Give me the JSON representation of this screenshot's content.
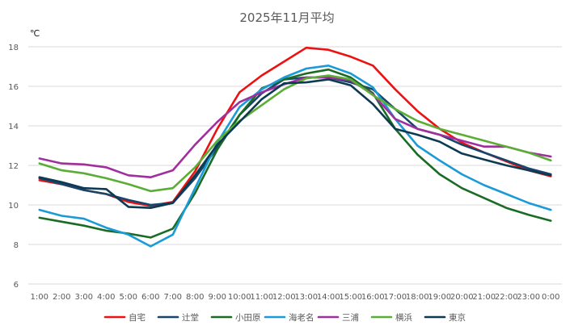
{
  "chart_data": {
    "type": "line",
    "title": "2025年11月平均",
    "ylabel": "℃",
    "xlabel": "",
    "ylim": [
      6,
      18
    ],
    "yticks": [
      6,
      8,
      10,
      12,
      14,
      16,
      18
    ],
    "grid": true,
    "legend_position": "bottom",
    "categories": [
      "1:00",
      "2:00",
      "3:00",
      "4:00",
      "5:00",
      "6:00",
      "7:00",
      "8:00",
      "9:00",
      "10:00",
      "11:00",
      "12:00",
      "13:00",
      "14:00",
      "15:00",
      "16:00",
      "17:00",
      "18:00",
      "19:00",
      "20:00",
      "21:00",
      "22:00",
      "23:00",
      "0:00"
    ],
    "series": [
      {
        "name": "自宅",
        "color": "#ee1111",
        "values": [
          11.25,
          11.05,
          10.75,
          10.55,
          10.15,
          9.95,
          10.15,
          11.7,
          13.85,
          15.7,
          16.55,
          17.25,
          17.95,
          17.85,
          17.5,
          17.05,
          15.85,
          14.75,
          13.85,
          13.15,
          12.65,
          12.2,
          11.75,
          11.45
        ]
      },
      {
        "name": "辻堂",
        "color": "#17456b",
        "values": [
          11.35,
          11.05,
          10.75,
          10.55,
          10.25,
          10.0,
          10.1,
          11.35,
          12.9,
          14.55,
          15.65,
          16.35,
          16.45,
          16.45,
          16.2,
          15.85,
          14.85,
          13.85,
          13.55,
          13.05,
          12.65,
          12.25,
          11.85,
          11.55
        ]
      },
      {
        "name": "小田原",
        "color": "#1a6b23",
        "values": [
          9.35,
          9.15,
          8.95,
          8.7,
          8.55,
          8.35,
          8.8,
          10.6,
          12.8,
          14.55,
          15.9,
          16.35,
          16.65,
          16.85,
          16.45,
          15.65,
          13.85,
          12.55,
          11.55,
          10.85,
          10.35,
          9.85,
          9.5,
          9.2
        ]
      },
      {
        "name": "海老名",
        "color": "#1a9bd7",
        "values": [
          9.75,
          9.45,
          9.3,
          8.85,
          8.5,
          7.9,
          8.5,
          10.85,
          13.15,
          14.95,
          15.85,
          16.45,
          16.9,
          17.05,
          16.65,
          15.95,
          14.35,
          13.0,
          12.25,
          11.55,
          11.0,
          10.55,
          10.1,
          9.75
        ]
      },
      {
        "name": "三浦",
        "color": "#a02f9e",
        "values": [
          12.35,
          12.1,
          12.05,
          11.9,
          11.5,
          11.4,
          11.75,
          13.05,
          14.2,
          15.2,
          15.7,
          16.1,
          16.45,
          16.45,
          16.3,
          15.6,
          14.35,
          13.85,
          13.55,
          13.25,
          12.95,
          12.95,
          12.65,
          12.45
        ]
      },
      {
        "name": "横浜",
        "color": "#5aad35",
        "values": [
          12.1,
          11.75,
          11.6,
          11.35,
          11.05,
          10.7,
          10.85,
          11.9,
          13.25,
          14.25,
          15.05,
          15.85,
          16.4,
          16.55,
          16.35,
          15.55,
          14.85,
          14.25,
          13.85,
          13.55,
          13.25,
          12.95,
          12.65,
          12.25
        ]
      },
      {
        "name": "東京",
        "color": "#0d3a52",
        "values": [
          11.4,
          11.15,
          10.85,
          10.8,
          9.9,
          9.85,
          10.1,
          11.5,
          13.05,
          14.2,
          15.35,
          16.15,
          16.2,
          16.35,
          16.05,
          15.1,
          13.85,
          13.55,
          13.2,
          12.6,
          12.3,
          12.0,
          11.75,
          11.5
        ]
      }
    ]
  }
}
